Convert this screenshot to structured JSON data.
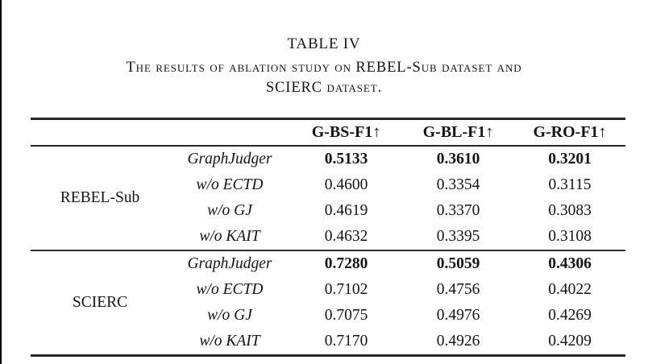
{
  "title": "TABLE IV",
  "caption": {
    "line1": "The results of ablation study on REBEL-Sub dataset and",
    "line2": "SCIERC dataset."
  },
  "table": {
    "headers": [
      "G-BS-F1↑",
      "G-BL-F1↑",
      "G-RO-F1↑"
    ],
    "sections": [
      {
        "dataset": "REBEL-Sub",
        "rows": [
          {
            "label": "GraphJudger",
            "values": [
              "0.5133",
              "0.3610",
              "0.3201"
            ]
          },
          {
            "label": "w/o ECTD",
            "values": [
              "0.4600",
              "0.3354",
              "0.3115"
            ]
          },
          {
            "label": "w/o GJ",
            "values": [
              "0.4619",
              "0.3370",
              "0.3083"
            ]
          },
          {
            "label": "w/o KAIT",
            "values": [
              "0.4632",
              "0.3395",
              "0.3108"
            ]
          }
        ]
      },
      {
        "dataset": "SCIERC",
        "rows": [
          {
            "label": "GraphJudger",
            "values": [
              "0.7280",
              "0.5059",
              "0.4306"
            ]
          },
          {
            "label": "w/o ECTD",
            "values": [
              "0.7102",
              "0.4756",
              "0.4022"
            ]
          },
          {
            "label": "w/o GJ",
            "values": [
              "0.7075",
              "0.4976",
              "0.4269"
            ]
          },
          {
            "label": "w/o KAIT",
            "values": [
              "0.7170",
              "0.4926",
              "0.4209"
            ]
          }
        ]
      }
    ]
  },
  "colors": {
    "rule": "#2e2e2e",
    "text": "#151515",
    "page_edge": "#000000"
  }
}
